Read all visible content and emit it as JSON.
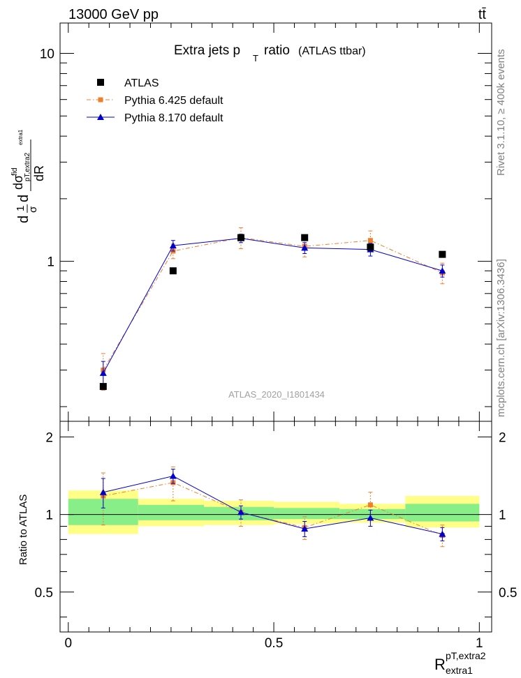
{
  "header": {
    "energy_label": "13000 GeV pp",
    "process_label": "tt̄"
  },
  "side_labels": {
    "rivet": "Rivet 3.1.10, ≥ 400k events",
    "mcplots": "mcplots.cern.ch [arXiv:1306.3436]"
  },
  "chart_data": [
    {
      "type": "line",
      "panel": "main",
      "title_main": "Extra jets p",
      "title_sub": "T",
      "title_tail": "ratio",
      "title_paren": "(ATLAS ttbar)",
      "analysis_label": "ATLAS_2020_I1801434",
      "ylabel": "d(1/σ dσ^fid/dR_pT,extra2/extra1)/dR",
      "yscale": "log",
      "ylim": [
        0.17,
        14
      ],
      "xlim": [
        -0.02,
        1.03
      ],
      "ytick_labels": [
        {
          "value": 1,
          "label": "1"
        },
        {
          "value": 10,
          "label": "10"
        }
      ],
      "series": [
        {
          "name": "ATLAS",
          "color": "#000000",
          "marker": "square",
          "x": [
            0.085,
            0.255,
            0.42,
            0.575,
            0.735,
            0.91
          ],
          "values": [
            0.25,
            0.9,
            1.3,
            1.3,
            1.17,
            1.08
          ]
        },
        {
          "name": "Pythia 6.425 default",
          "color": "#ee7f2d",
          "marker": "square",
          "line": "dashdot",
          "x": [
            0.085,
            0.255,
            0.42,
            0.575,
            0.735,
            0.91
          ],
          "values": [
            0.3,
            1.12,
            1.3,
            1.18,
            1.26,
            0.88
          ],
          "err": [
            0.06,
            0.09,
            0.15,
            0.13,
            0.14,
            0.1
          ]
        },
        {
          "name": "Pythia 8.170 default",
          "color": "#0000cc",
          "marker": "triangle",
          "line": "solid",
          "x": [
            0.085,
            0.255,
            0.42,
            0.575,
            0.735,
            0.91
          ],
          "values": [
            0.29,
            1.19,
            1.29,
            1.16,
            1.14,
            0.9
          ],
          "err": [
            0.04,
            0.07,
            0.06,
            0.07,
            0.08,
            0.06
          ]
        }
      ]
    },
    {
      "type": "line",
      "panel": "ratio",
      "ylabel": "Ratio to ATLAS",
      "xlabel": "R",
      "xlabel_sup": "pT,extra2",
      "xlabel_sub": "extra1",
      "ylim": [
        0.35,
        2.3
      ],
      "xlim": [
        -0.02,
        1.03
      ],
      "ytick_labels": [
        {
          "value": 0.5,
          "label": "0.5"
        },
        {
          "value": 1,
          "label": "1"
        },
        {
          "value": 2,
          "label": "2"
        }
      ],
      "xtick_labels": [
        {
          "value": 0,
          "label": "0"
        },
        {
          "value": 0.5,
          "label": "0.5"
        },
        {
          "value": 1,
          "label": "1"
        }
      ],
      "bands": [
        {
          "x0": 0.0,
          "x1": 0.17,
          "y_lo": 0.84,
          "y_hi": 1.24,
          "g_lo": 0.91,
          "g_hi": 1.15
        },
        {
          "x0": 0.17,
          "x1": 0.33,
          "y_lo": 0.9,
          "y_hi": 1.15,
          "g_lo": 0.95,
          "g_hi": 1.09
        },
        {
          "x0": 0.33,
          "x1": 0.5,
          "y_lo": 0.91,
          "y_hi": 1.13,
          "g_lo": 0.95,
          "g_hi": 1.07
        },
        {
          "x0": 0.5,
          "x1": 0.66,
          "y_lo": 0.92,
          "y_hi": 1.12,
          "g_lo": 0.96,
          "g_hi": 1.06
        },
        {
          "x0": 0.66,
          "x1": 0.82,
          "y_lo": 0.93,
          "y_hi": 1.1,
          "g_lo": 0.96,
          "g_hi": 1.05
        },
        {
          "x0": 0.82,
          "x1": 1.0,
          "y_lo": 0.89,
          "y_hi": 1.18,
          "g_lo": 0.94,
          "g_hi": 1.1
        }
      ],
      "series": [
        {
          "name": "Pythia 6.425 default",
          "color": "#ee7f2d",
          "marker": "square",
          "line": "dashdot",
          "x": [
            0.085,
            0.255,
            0.42,
            0.575,
            0.735,
            0.91
          ],
          "values": [
            1.18,
            1.33,
            1.02,
            0.89,
            1.09,
            0.83
          ],
          "err": [
            0.27,
            0.2,
            0.12,
            0.09,
            0.13,
            0.08
          ]
        },
        {
          "name": "Pythia 8.170 default",
          "color": "#0000cc",
          "marker": "triangle",
          "line": "solid",
          "x": [
            0.085,
            0.255,
            0.42,
            0.575,
            0.735,
            0.91
          ],
          "values": [
            1.22,
            1.41,
            1.02,
            0.88,
            0.97,
            0.84
          ],
          "err": [
            0.16,
            0.09,
            0.06,
            0.06,
            0.07,
            0.05
          ]
        }
      ]
    }
  ]
}
